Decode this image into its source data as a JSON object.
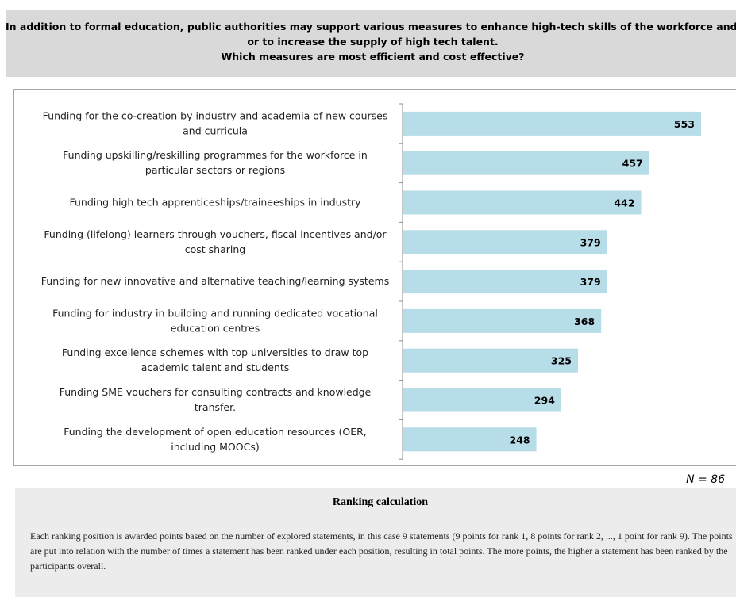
{
  "header": {
    "line1": "In addition to formal education, public authorities may support various measures to enhance high-tech skills of the workforce and /",
    "line2": "or to increase the supply of high tech talent.",
    "line3": "Which measures are most efficient and cost effective?"
  },
  "chart_data": {
    "type": "bar",
    "orientation": "horizontal",
    "categories": [
      [
        "Funding for the co-creation by industry and academia of new courses",
        "and curricula"
      ],
      [
        "Funding upskilling/reskilling programmes for the workforce  in",
        "particular sectors or regions"
      ],
      [
        "Funding high tech apprenticeships/traineeships in industry"
      ],
      [
        "Funding (lifelong) learners through vouchers, fiscal incentives and/or",
        "cost sharing"
      ],
      [
        "Funding for new innovative and alternative teaching/learning systems"
      ],
      [
        "Funding for industry in building and running dedicated vocational",
        "education centres"
      ],
      [
        "Funding excellence schemes with top universities to draw top",
        "academic talent and students"
      ],
      [
        "Funding SME vouchers for consulting contracts and knowledge",
        "transfer."
      ],
      [
        "Funding the development of open education resources (OER,",
        "including MOOCs)"
      ]
    ],
    "values": [
      553,
      457,
      442,
      379,
      379,
      368,
      325,
      294,
      248
    ],
    "bar_color": "#b7dde8",
    "data_labels": true,
    "grid": false,
    "xlim": [
      0,
      553
    ]
  },
  "n_label": "N = 86",
  "method": {
    "title": "Ranking calculation",
    "text": "Each ranking position is awarded points based on the number of explored statements, in this case 9 statements (9 points for rank 1, 8 points for rank 2, ..., 1 point for rank 9). The points are put into relation with the number of times a statement has been ranked under each position, resulting in total points. The more points, the higher a statement has been ranked by the participants overall."
  }
}
